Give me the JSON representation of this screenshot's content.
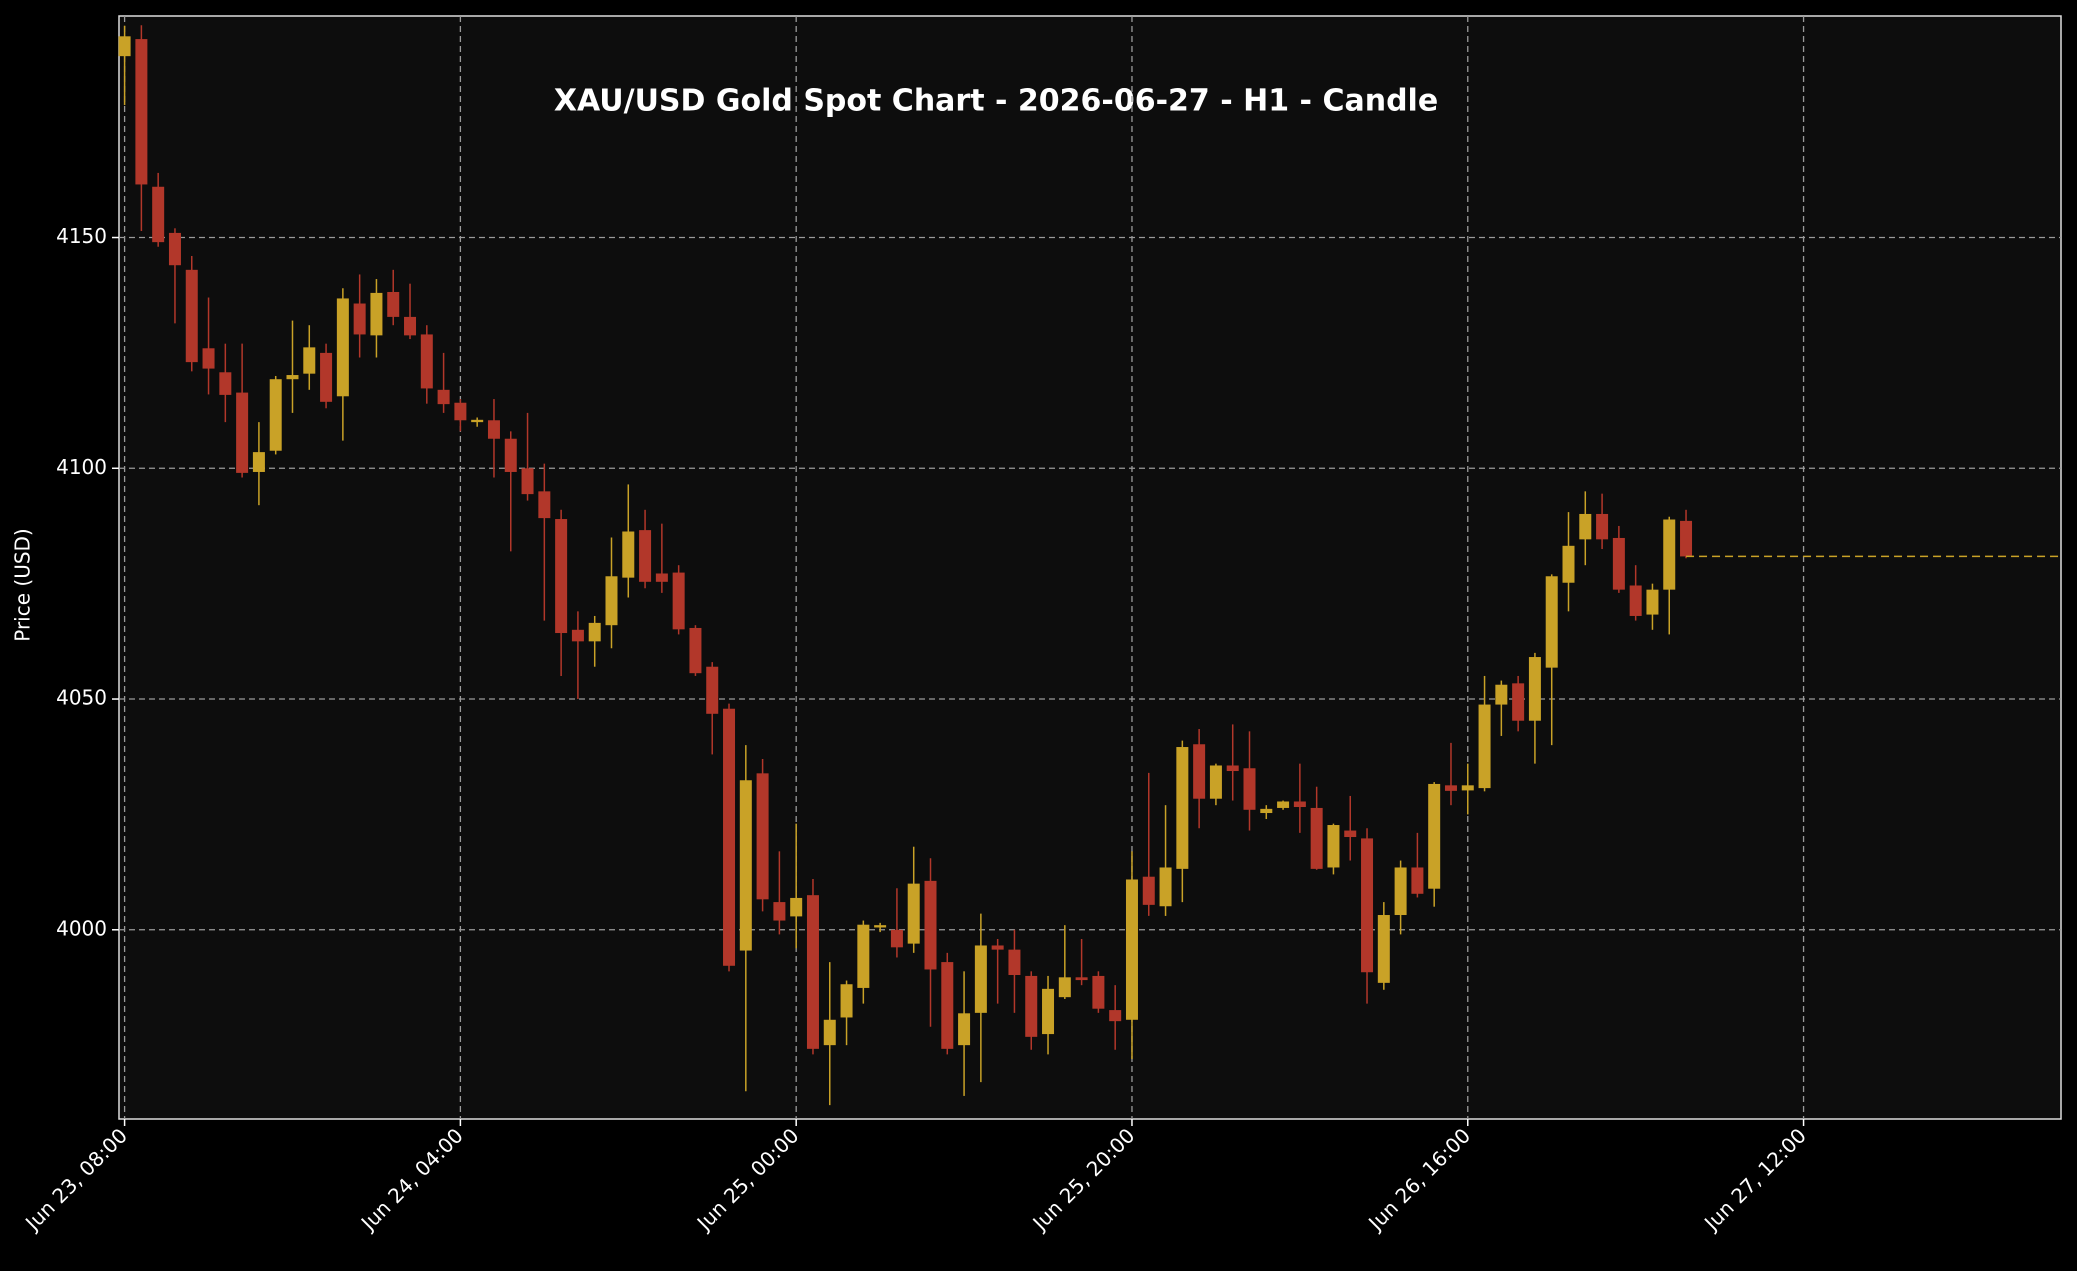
{
  "chart_data": {
    "type": "candlestick",
    "title": "XAU/USD Gold Spot Chart - 2026-06-27 - H1 - Candle",
    "y_label": "Price (USD)",
    "up_color": "#c9a227",
    "down_color": "#b2372a",
    "grid": true,
    "x": [
      "2026-06-23T08:00",
      "2026-06-23T09:00",
      "2026-06-23T10:00",
      "2026-06-23T11:00",
      "2026-06-23T12:00",
      "2026-06-23T13:00",
      "2026-06-23T14:00",
      "2026-06-23T15:00",
      "2026-06-23T16:00",
      "2026-06-23T17:00",
      "2026-06-23T18:00",
      "2026-06-23T19:00",
      "2026-06-23T20:00",
      "2026-06-23T21:00",
      "2026-06-23T22:00",
      "2026-06-23T23:00",
      "2026-06-24T00:00",
      "2026-06-24T01:00",
      "2026-06-24T02:00",
      "2026-06-24T03:00",
      "2026-06-24T04:00",
      "2026-06-24T05:00",
      "2026-06-24T06:00",
      "2026-06-24T07:00",
      "2026-06-24T08:00",
      "2026-06-24T09:00",
      "2026-06-24T10:00",
      "2026-06-24T11:00",
      "2026-06-24T12:00",
      "2026-06-24T13:00",
      "2026-06-24T14:00",
      "2026-06-24T15:00",
      "2026-06-24T16:00",
      "2026-06-24T17:00",
      "2026-06-24T18:00",
      "2026-06-24T19:00",
      "2026-06-24T20:00",
      "2026-06-24T21:00",
      "2026-06-24T22:00",
      "2026-06-24T23:00",
      "2026-06-25T00:00",
      "2026-06-25T01:00",
      "2026-06-25T02:00",
      "2026-06-25T03:00",
      "2026-06-25T04:00",
      "2026-06-25T05:00",
      "2026-06-25T06:00",
      "2026-06-25T07:00",
      "2026-06-25T08:00",
      "2026-06-25T09:00",
      "2026-06-25T10:00",
      "2026-06-25T11:00",
      "2026-06-25T12:00",
      "2026-06-25T13:00",
      "2026-06-25T14:00",
      "2026-06-25T15:00",
      "2026-06-25T16:00",
      "2026-06-25T17:00",
      "2026-06-25T18:00",
      "2026-06-25T19:00",
      "2026-06-25T20:00",
      "2026-06-25T21:00",
      "2026-06-25T22:00",
      "2026-06-25T23:00",
      "2026-06-26T00:00",
      "2026-06-26T01:00",
      "2026-06-26T02:00",
      "2026-06-26T03:00",
      "2026-06-26T04:00",
      "2026-06-26T05:00",
      "2026-06-26T06:00",
      "2026-06-26T07:00",
      "2026-06-26T08:00",
      "2026-06-26T09:00",
      "2026-06-26T10:00",
      "2026-06-26T11:00",
      "2026-06-26T12:00",
      "2026-06-26T13:00",
      "2026-06-26T14:00",
      "2026-06-26T15:00",
      "2026-06-26T16:00",
      "2026-06-26T17:00",
      "2026-06-26T18:00",
      "2026-06-26T19:00",
      "2026-06-26T20:00",
      "2026-06-26T21:00",
      "2026-06-26T22:00",
      "2026-06-26T23:00",
      "2026-06-27T00:00",
      "2026-06-27T01:00",
      "2026-06-27T02:00",
      "2026-06-27T03:00",
      "2026-06-27T04:00",
      "2026-06-27T05:00"
    ],
    "open": [
      4189.3,
      4193,
      4161,
      4151,
      4143,
      4126,
      4120.8,
      4116.4,
      4099.2,
      4103.8,
      4119.3,
      4120.5,
      4125,
      4115.6,
      4135.7,
      4128.8,
      4138.2,
      4132.8,
      4129,
      4117,
      4114.2,
      4110,
      4110.4,
      4106.4,
      4100,
      4095,
      4089,
      4065,
      4062.5,
      4066,
      4076.3,
      4086.6,
      4077.2,
      4077.4,
      4065.4,
      4057,
      4047.9,
      3995.5,
      4033.9,
      4006,
      4002.9,
      4007.5,
      3975,
      3981,
      3987.4,
      4000.5,
      4000,
      3997,
      4010.6,
      3993,
      3975,
      3982,
      3996.6,
      3995.7,
      3990,
      3977.4,
      3985.4,
      3989.7,
      3990,
      3982.6,
      3980.5,
      4011.5,
      4005.1,
      4013.2,
      4040.2,
      4028.4,
      4035.6,
      4035,
      4025.3,
      4026.4,
      4027.8,
      4026.4,
      4013.5,
      4021.5,
      4019.8,
      3988.5,
      4003.2,
      4013.5,
      4008.9,
      4031.3,
      4030.2,
      4030.7,
      4048.8,
      4053.4,
      4045.3,
      4056.8,
      4075.2,
      4084.6,
      4090.1,
      4084.9,
      4074.6,
      4068.3,
      4073.7,
      4088.6
    ],
    "high": [
      4195.9,
      4196,
      4164,
      4152,
      4146,
      4137,
      4127,
      4127,
      4110,
      4120,
      4132,
      4131,
      4127,
      4139,
      4142,
      4141,
      4143,
      4140,
      4131,
      4125,
      4115,
      4111,
      4115,
      4108,
      4112,
      4101,
      4091,
      4069,
      4068,
      4085,
      4096.5,
      4091,
      4088,
      4079,
      4066,
      4058,
      4049,
      4040,
      4037,
      4017,
      4023,
      4011,
      3993,
      3989,
      4002,
      4001.5,
      4009,
      4018,
      4015.5,
      3995,
      3991,
      4003.5,
      3998,
      4000,
      3991,
      3990,
      4001,
      3998,
      3991,
      3988,
      4017,
      4034,
      4027,
      4041,
      4043.5,
      4036,
      4044.5,
      4043,
      4027,
      4028,
      4036,
      4031,
      4023,
      4029,
      4022,
      4006,
      4015,
      4021,
      4032,
      4040.5,
      4036,
      4055,
      4054,
      4055,
      4060,
      4077,
      4090.5,
      4095,
      4094.5,
      4087.5,
      4079,
      4075,
      4089.5,
      4091
    ],
    "low": [
      4178.7,
      4151.4,
      4148,
      4131.4,
      4121,
      4116,
      4110,
      4098,
      4092,
      4103,
      4112,
      4117,
      4113,
      4106,
      4124,
      4124,
      4131,
      4128,
      4114,
      4112,
      4108,
      4109,
      4098,
      4082,
      4093,
      4067,
      4055,
      4050,
      4057,
      4061,
      4072,
      4074,
      4073,
      4064,
      4055,
      4038,
      3991,
      3965,
      4004,
      3999,
      3996,
      3973,
      3962,
      3975,
      3984,
      3999.5,
      3994,
      3995,
      3979,
      3973,
      3964,
      3967,
      3984,
      3982,
      3974,
      3973,
      3985,
      3988,
      3982,
      3974,
      3972,
      4003,
      4003,
      4006,
      4022,
      4027,
      4028,
      4021.5,
      4024,
      4026,
      4021,
      4013,
      4012,
      4015,
      3984,
      3987,
      3999,
      4007,
      4005,
      4027,
      4025,
      4030,
      4042,
      4043,
      4036,
      4040,
      4069,
      4079,
      4082.5,
      4073,
      4067,
      4065,
      4064,
      4080.5
    ],
    "close": [
      4193.6,
      4161.5,
      4149,
      4144,
      4123,
      4121.6,
      4115.9,
      4099,
      4103.5,
      4119.3,
      4120.2,
      4126.2,
      4114.4,
      4136.8,
      4129,
      4138,
      4132.8,
      4128.8,
      4117.3,
      4113.9,
      4110.4,
      4110.5,
      4106.4,
      4099.2,
      4094.4,
      4089.2,
      4064.3,
      4062.5,
      4066.5,
      4076.6,
      4086.3,
      4075.4,
      4075.4,
      4065.1,
      4055.6,
      4046.8,
      3992.2,
      4032.4,
      4006.6,
      4002,
      4006.9,
      3974.2,
      3980.5,
      3988.2,
      4001.1,
      4001,
      3996.2,
      4010,
      3991.4,
      3974.2,
      3981.9,
      3996.6,
      3995.7,
      3990.2,
      3976.8,
      3987.2,
      3989.7,
      3989.1,
      3982.9,
      3980.2,
      4010.9,
      4005.4,
      4013.5,
      4039.6,
      4028.4,
      4035.6,
      4034.4,
      4026,
      4026.2,
      4027.8,
      4026.6,
      4013.2,
      4022.7,
      4020.1,
      3990.8,
      4003.2,
      4013.5,
      4007.8,
      4031.6,
      4030.1,
      4031.3,
      4048.8,
      4053.1,
      4045.3,
      4059.1,
      4076.6,
      4083.2,
      4090.1,
      4084.6,
      4073.7,
      4068,
      4073.7,
      4088.9,
      4080.9
    ],
    "xlim": [
      "2026-06-23T07:40",
      "2026-06-28T03:20"
    ],
    "xticks": [
      {
        "value": "2026-06-23T08:00",
        "label": "Jun 23, 08:00"
      },
      {
        "value": "2026-06-24T04:00",
        "label": "Jun 24, 04:00"
      },
      {
        "value": "2026-06-25T00:00",
        "label": "Jun 25, 00:00"
      },
      {
        "value": "2026-06-25T20:00",
        "label": "Jun 25, 20:00"
      },
      {
        "value": "2026-06-26T16:00",
        "label": "Jun 26, 16:00"
      },
      {
        "value": "2026-06-27T12:00",
        "label": "Jun 27, 12:00"
      }
    ],
    "ylim": [
      3959,
      4198
    ],
    "yticks": [
      4000,
      4050,
      4100,
      4150
    ]
  }
}
